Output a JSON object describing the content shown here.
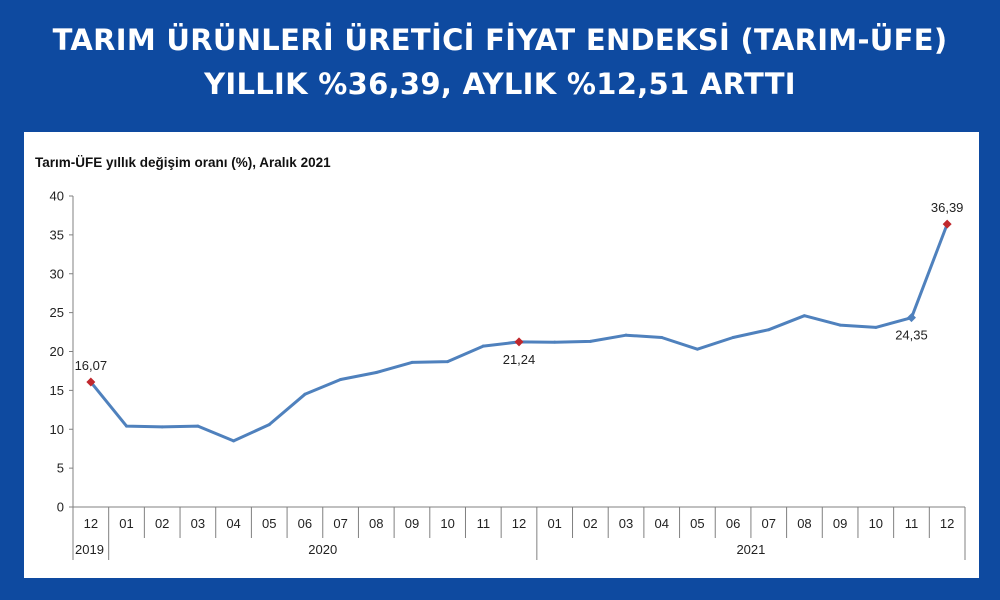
{
  "headline": {
    "line1": "TARIM ÜRÜNLERİ ÜRETİCİ FİYAT ENDEKSİ (TARIM-ÜFE)",
    "line2": "YILLIK %36,39, AYLIK %12,51 ARTTI"
  },
  "colors": {
    "background": "#0e4aa0",
    "line": "#4f81bd",
    "marker_red": "#c0282d",
    "marker_blue": "#4f81bd"
  },
  "chart_data": {
    "type": "line",
    "title": "Tarım-ÜFE yıllık değişim oranı (%), Aralık 2021",
    "xlabel": "",
    "ylabel": "",
    "ylim": [
      0,
      40
    ],
    "yticks": [
      "0",
      "5",
      "10",
      "15",
      "20",
      "25",
      "30",
      "35",
      "40"
    ],
    "grid": false,
    "categories": [
      "12",
      "01",
      "02",
      "03",
      "04",
      "05",
      "06",
      "07",
      "08",
      "09",
      "10",
      "11",
      "12",
      "01",
      "02",
      "03",
      "04",
      "05",
      "06",
      "07",
      "08",
      "09",
      "10",
      "11",
      "12"
    ],
    "year_groups": [
      {
        "label": "2019",
        "count": 1
      },
      {
        "label": "2020",
        "count": 12
      },
      {
        "label": "2021",
        "count": 12
      }
    ],
    "series": [
      {
        "values": [
          16.07,
          10.4,
          10.3,
          10.4,
          8.5,
          10.6,
          14.5,
          16.4,
          17.3,
          18.6,
          18.7,
          20.7,
          21.24,
          21.2,
          21.3,
          22.1,
          21.8,
          20.3,
          21.8,
          22.8,
          24.6,
          23.4,
          23.1,
          24.35,
          36.39
        ]
      }
    ],
    "data_labels": [
      {
        "index": 0,
        "text": "16,07",
        "marker": "red",
        "position": "above"
      },
      {
        "index": 12,
        "text": "21,24",
        "marker": "red",
        "position": "below"
      },
      {
        "index": 23,
        "text": "24,35",
        "marker": "blue",
        "position": "below"
      },
      {
        "index": 24,
        "text": "36,39",
        "marker": "red",
        "position": "above"
      }
    ]
  }
}
